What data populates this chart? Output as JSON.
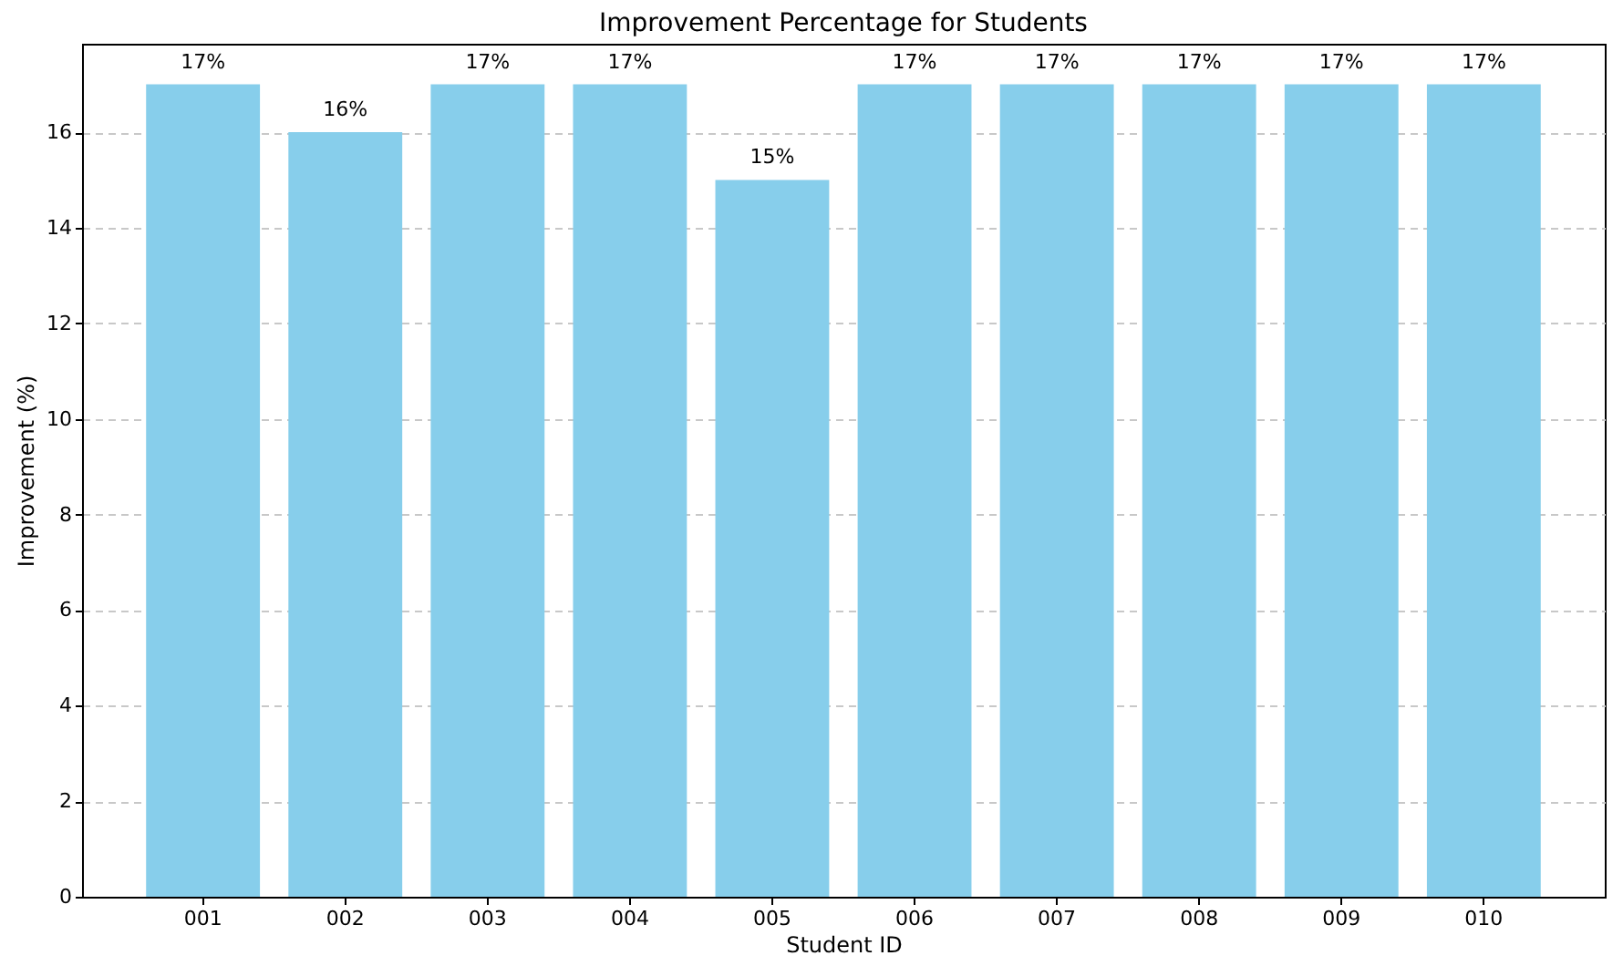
{
  "chart_data": {
    "type": "bar",
    "title": "Improvement Percentage for Students",
    "xlabel": "Student ID",
    "ylabel": "Improvement (%)",
    "categories": [
      "001",
      "002",
      "003",
      "004",
      "005",
      "006",
      "007",
      "008",
      "009",
      "010"
    ],
    "values": [
      17,
      16,
      17,
      17,
      15,
      17,
      17,
      17,
      17,
      17
    ],
    "value_labels": [
      "17%",
      "16%",
      "17%",
      "17%",
      "15%",
      "17%",
      "17%",
      "17%",
      "17%",
      "17%"
    ],
    "color": "#87ceeb",
    "ylim": [
      0,
      17.85
    ],
    "yticks": [
      0,
      2,
      4,
      6,
      8,
      10,
      12,
      14,
      16
    ],
    "grid": "y"
  }
}
